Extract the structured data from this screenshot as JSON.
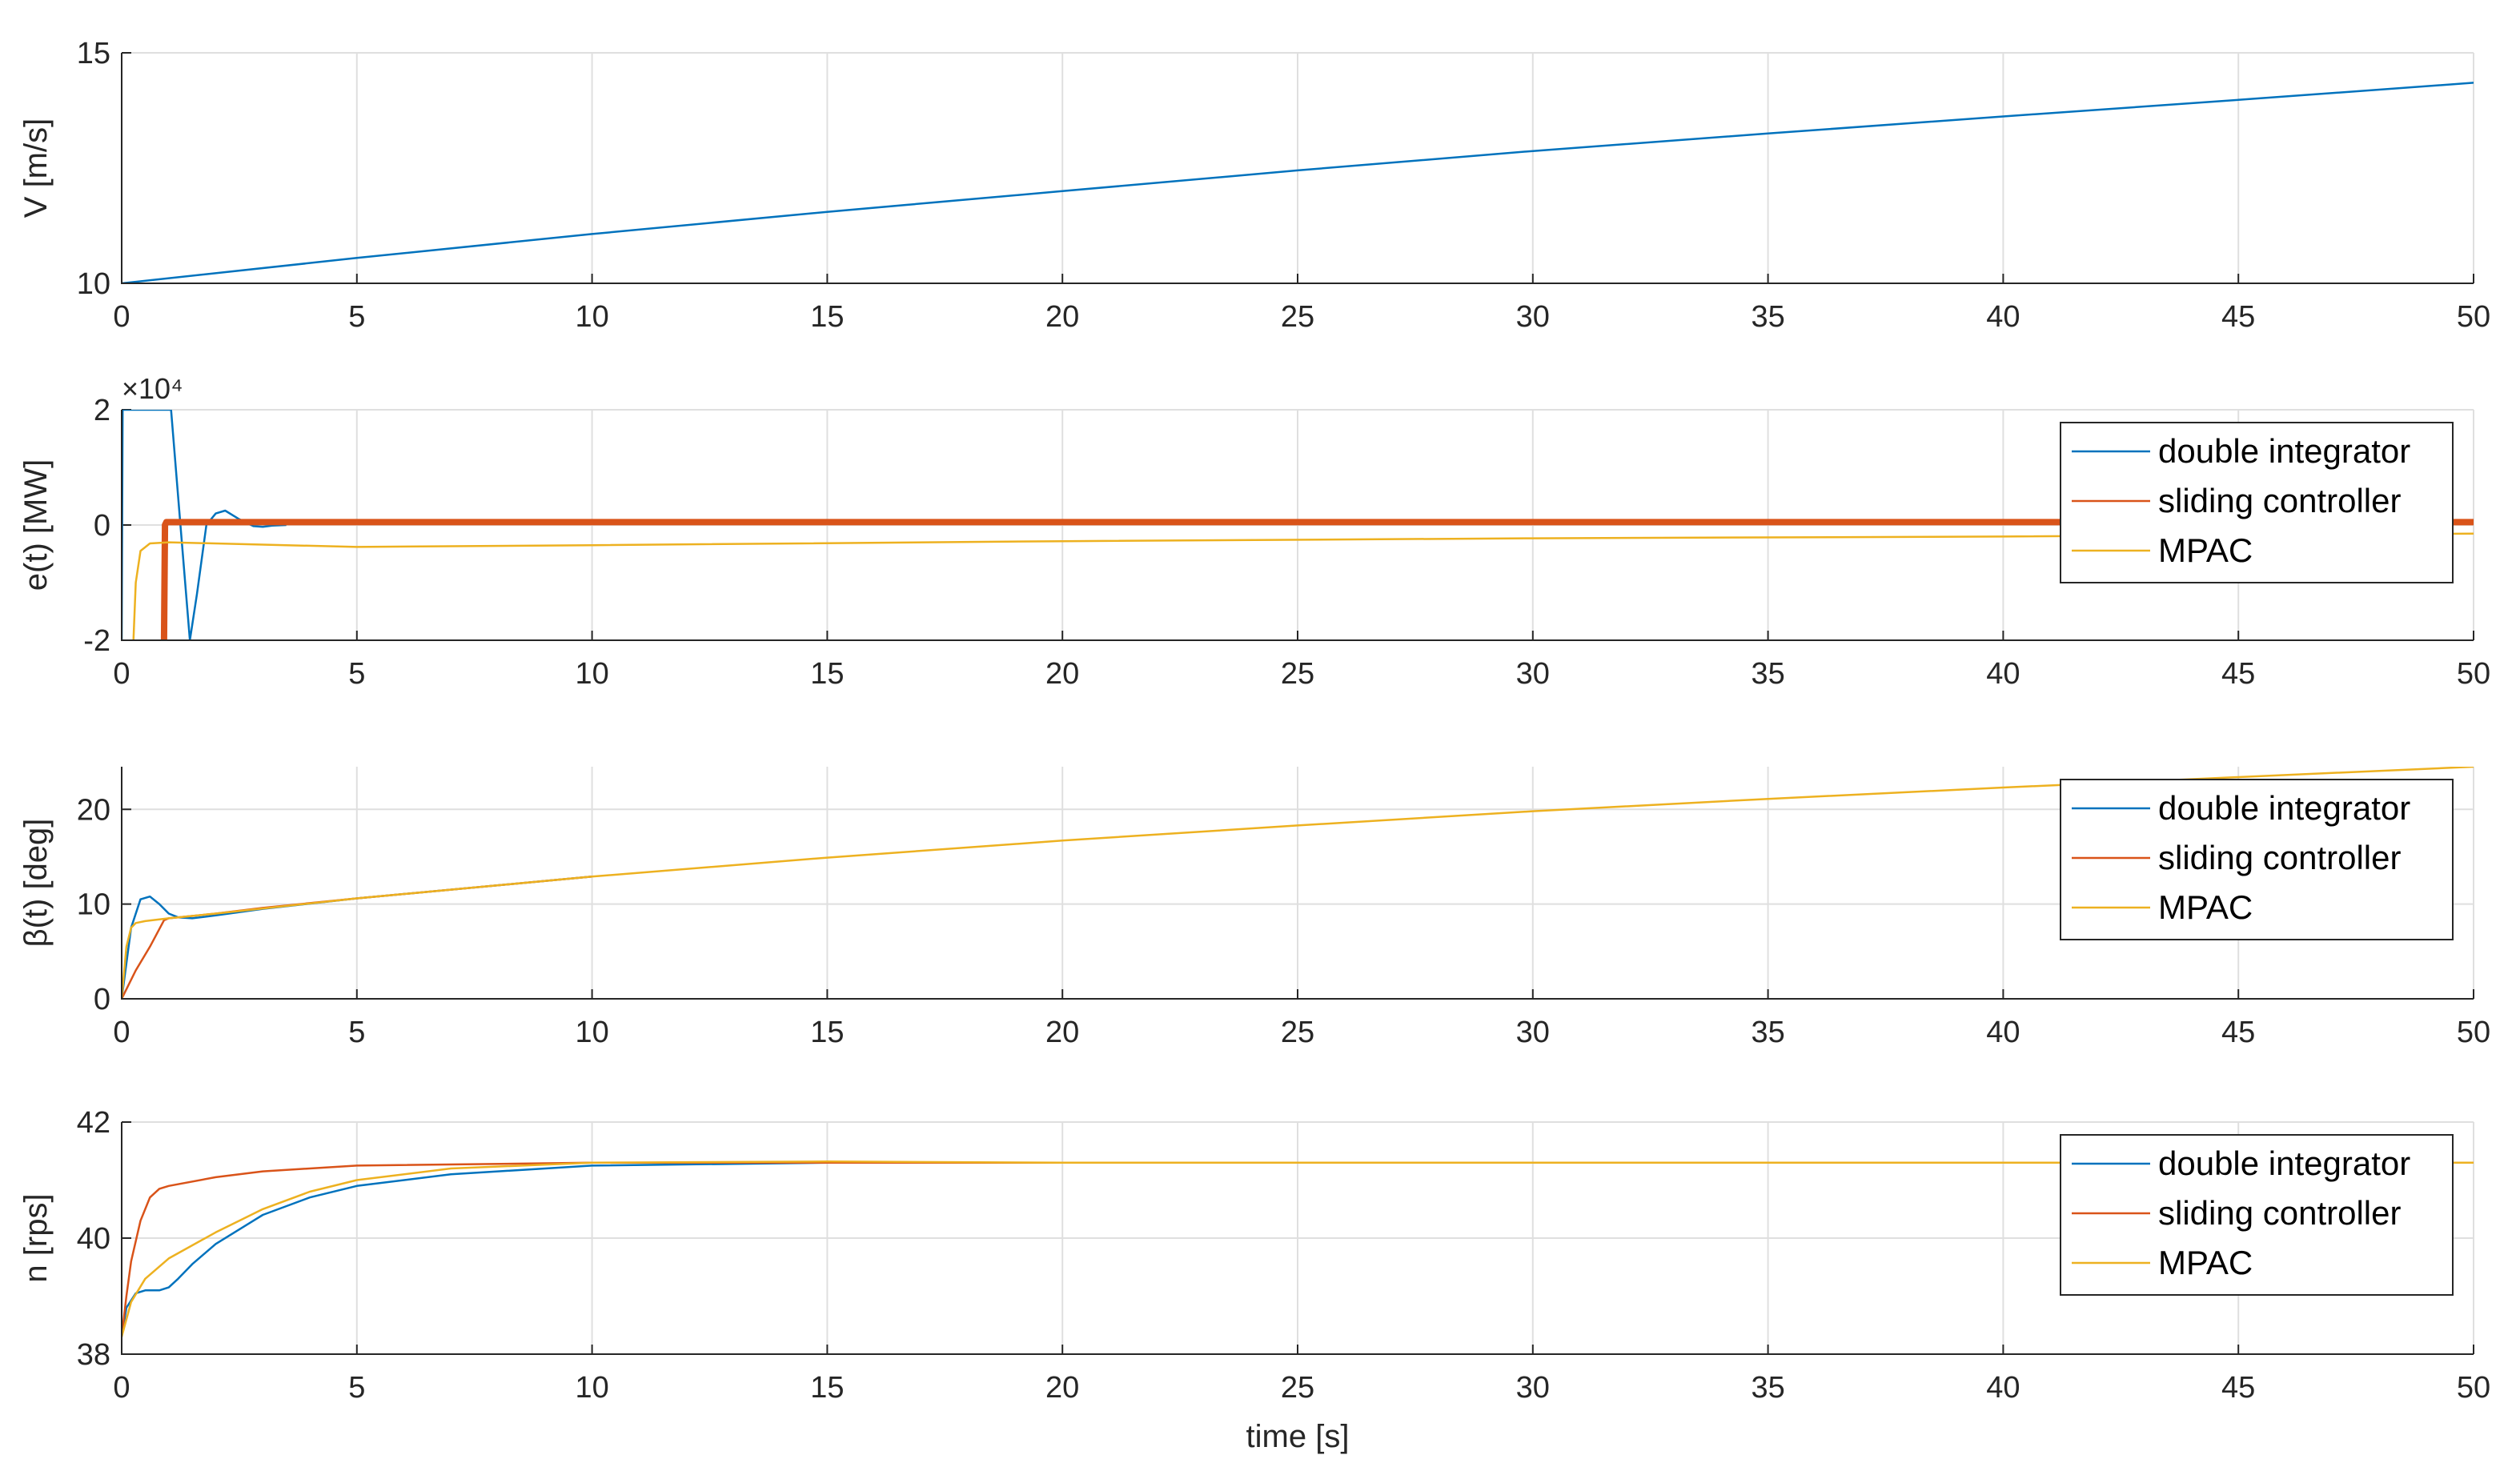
{
  "chart_data": [
    {
      "type": "line",
      "ylabel": "V [m/s]",
      "xlabel": "",
      "xlim": [
        0,
        50
      ],
      "ylim": [
        10,
        15
      ],
      "xticks": [
        "0",
        "5",
        "10",
        "15",
        "20",
        "25",
        "30",
        "35",
        "40",
        "45",
        "50"
      ],
      "yticks": [
        "15",
        "10"
      ],
      "grid": true,
      "legend": null,
      "series": [
        {
          "color": "#0072BD",
          "x": [
            0,
            5,
            10,
            15,
            20,
            25,
            30,
            35,
            40,
            45,
            50
          ],
          "y": [
            10.0,
            10.55,
            11.07,
            11.55,
            12.0,
            12.45,
            12.87,
            13.25,
            13.62,
            13.98,
            14.35
          ]
        }
      ]
    },
    {
      "type": "line",
      "ylabel": "e(t) [MW]",
      "xlabel": "",
      "exponent_label": "×10⁴",
      "xlim": [
        0,
        50
      ],
      "ylim": [
        -2,
        2
      ],
      "xticks": [
        "0",
        "5",
        "10",
        "15",
        "20",
        "25",
        "30",
        "35",
        "40",
        "45",
        "50"
      ],
      "yticks": [
        "2",
        "0",
        "-2"
      ],
      "grid": true,
      "legend": {
        "placement": "top-right",
        "entries": [
          "double integrator",
          "sliding controller",
          "MPAC"
        ]
      },
      "series": [
        {
          "name": "double integrator",
          "color": "#0072BD",
          "x": [
            0,
            0.02,
            0.05,
            0.1,
            0.3,
            0.5,
            0.6,
            0.7,
            0.85,
            0.95,
            1.05,
            1.25,
            1.45,
            1.6,
            1.8,
            2.0,
            2.2,
            2.5,
            2.8,
            3.0,
            3.2,
            3.5
          ],
          "y": [
            -2.0,
            2.0,
            2.0,
            2.0,
            2.0,
            2.0,
            2.0,
            2.0,
            2.0,
            2.0,
            2.0,
            0.0,
            -2.0,
            -1.2,
            0.0,
            0.2,
            0.25,
            0.1,
            -0.02,
            -0.03,
            -0.01,
            0.0
          ]
        },
        {
          "name": "sliding controller",
          "color": "#D95319",
          "x": [
            0.9,
            0.92,
            0.95,
            1.0,
            50
          ],
          "y": [
            -2.0,
            0.0,
            0.05,
            0.05,
            0.05
          ]
        },
        {
          "name": "MPAC",
          "color": "#EDB120",
          "x": [
            0.25,
            0.3,
            0.4,
            0.6,
            1.0,
            5.0,
            10.0,
            20.0,
            30.0,
            40.0,
            50.0
          ],
          "y": [
            -2.0,
            -1.0,
            -0.45,
            -0.32,
            -0.3,
            -0.38,
            -0.35,
            -0.28,
            -0.23,
            -0.2,
            -0.15
          ]
        }
      ]
    },
    {
      "type": "line",
      "ylabel": "β(t) [deg]",
      "xlabel": "",
      "xlim": [
        0,
        50
      ],
      "ylim": [
        0,
        24.5
      ],
      "xticks": [
        "0",
        "5",
        "10",
        "15",
        "20",
        "25",
        "30",
        "35",
        "40",
        "45",
        "50"
      ],
      "yticks": [
        "20",
        "10",
        "0"
      ],
      "grid": true,
      "legend": {
        "placement": "top-right",
        "entries": [
          "double integrator",
          "sliding controller",
          "MPAC"
        ]
      },
      "series": [
        {
          "name": "double integrator",
          "color": "#0072BD",
          "x": [
            0,
            0.2,
            0.4,
            0.6,
            0.8,
            1.0,
            1.2,
            1.5,
            2.0,
            3.0,
            5.0,
            10.0
          ],
          "y": [
            0.0,
            7.5,
            10.5,
            10.8,
            10.0,
            9.0,
            8.6,
            8.5,
            8.8,
            9.5,
            10.6,
            12.9
          ]
        },
        {
          "name": "sliding controller",
          "color": "#D95319",
          "x": [
            0,
            0.3,
            0.6,
            0.9,
            1.0,
            1.2,
            2.0,
            3.0,
            5.0,
            10.0
          ],
          "y": [
            0.0,
            3.0,
            5.5,
            8.3,
            8.5,
            8.6,
            9.0,
            9.6,
            10.6,
            12.9
          ]
        },
        {
          "name": "MPAC",
          "color": "#EDB120",
          "x": [
            0,
            0.1,
            0.2,
            0.3,
            0.5,
            1.0,
            2.0,
            5.0,
            10.0,
            15.0,
            20.0,
            25.0,
            30.0,
            35.0,
            40.0,
            45.0,
            50.0
          ],
          "y": [
            0.0,
            5.5,
            7.5,
            8.0,
            8.2,
            8.5,
            9.0,
            10.6,
            12.9,
            14.9,
            16.7,
            18.3,
            19.8,
            21.1,
            22.3,
            23.4,
            24.5
          ]
        }
      ]
    },
    {
      "type": "line",
      "ylabel": "n [rps]",
      "xlabel": "time [s]",
      "xlim": [
        0,
        50
      ],
      "ylim": [
        38,
        42
      ],
      "xticks": [
        "0",
        "5",
        "10",
        "15",
        "20",
        "25",
        "30",
        "35",
        "40",
        "45",
        "50"
      ],
      "yticks": [
        "42",
        "40",
        "38"
      ],
      "grid": true,
      "legend": {
        "placement": "top-right",
        "entries": [
          "double integrator",
          "sliding controller",
          "MPAC"
        ]
      },
      "series": [
        {
          "name": "double integrator",
          "color": "#0072BD",
          "x": [
            0,
            0.1,
            0.3,
            0.5,
            0.8,
            1.0,
            1.2,
            1.5,
            2.0,
            3.0,
            4.0,
            5.0,
            7.0,
            10.0,
            15.0,
            20.0,
            30.0,
            40.0,
            50.0
          ],
          "y": [
            38.3,
            38.8,
            39.05,
            39.1,
            39.1,
            39.15,
            39.3,
            39.55,
            39.9,
            40.4,
            40.7,
            40.9,
            41.1,
            41.25,
            41.3,
            41.3,
            41.3,
            41.3,
            41.3
          ]
        },
        {
          "name": "sliding controller",
          "color": "#D95319",
          "x": [
            0,
            0.1,
            0.2,
            0.4,
            0.6,
            0.8,
            1.0,
            2.0,
            3.0,
            5.0,
            10.0,
            20.0,
            50.0
          ],
          "y": [
            38.3,
            39.0,
            39.6,
            40.3,
            40.7,
            40.85,
            40.9,
            41.05,
            41.15,
            41.25,
            41.3,
            41.3,
            41.3
          ]
        },
        {
          "name": "MPAC",
          "color": "#EDB120",
          "x": [
            0,
            0.2,
            0.5,
            1.0,
            2.0,
            3.0,
            4.0,
            5.0,
            7.0,
            10.0,
            15.0,
            20.0,
            50.0
          ],
          "y": [
            38.3,
            38.9,
            39.3,
            39.65,
            40.1,
            40.5,
            40.8,
            41.0,
            41.2,
            41.3,
            41.32,
            41.3,
            41.3
          ]
        }
      ]
    }
  ]
}
